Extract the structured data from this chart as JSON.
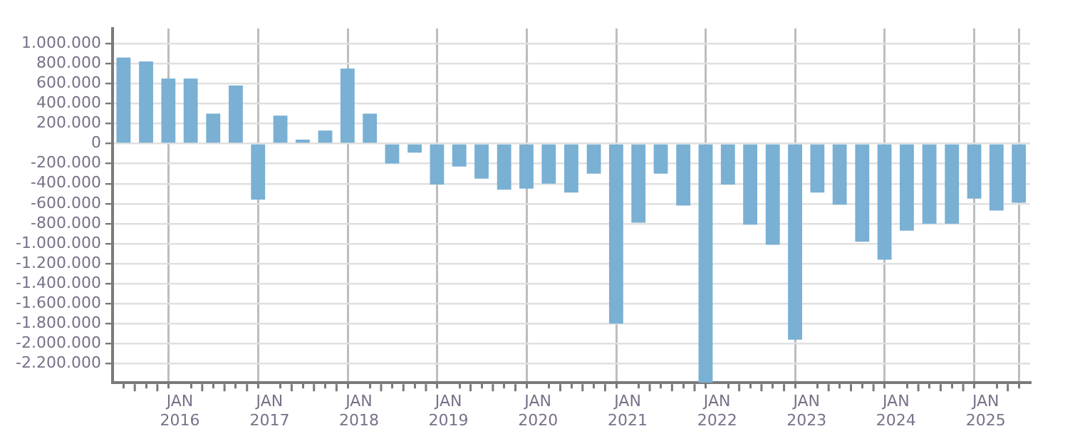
{
  "chart_data": {
    "type": "bar",
    "color": "#79b0d4",
    "x": [
      "2015-05-16",
      "2015-08-16",
      "2015-11-15",
      "2016-02-14",
      "2016-05-16",
      "2016-08-16",
      "2016-11-15",
      "2017-02-14",
      "2017-05-16",
      "2017-08-16",
      "2017-11-15",
      "2018-02-14",
      "2018-05-16",
      "2018-08-16",
      "2018-11-15",
      "2019-02-14",
      "2019-05-16",
      "2019-08-16",
      "2019-11-15",
      "2020-02-14",
      "2020-05-16",
      "2020-08-16",
      "2020-11-15",
      "2021-02-14",
      "2021-05-16",
      "2021-08-16",
      "2021-11-15",
      "2022-02-14",
      "2022-05-16",
      "2022-08-16",
      "2022-11-15",
      "2023-02-14",
      "2023-05-16",
      "2023-08-16",
      "2023-11-15",
      "2024-02-14",
      "2024-05-16",
      "2024-08-16",
      "2024-11-15",
      "2025-02-14",
      "2025-05-16"
    ],
    "values": [
      860000,
      820000,
      650000,
      650000,
      300000,
      580000,
      -560000,
      280000,
      40000,
      130000,
      750000,
      300000,
      -200000,
      -90000,
      -410000,
      -230000,
      -350000,
      -460000,
      -450000,
      -400000,
      -490000,
      -300000,
      -1800000,
      -790000,
      -300000,
      -620000,
      -2390000,
      -410000,
      -810000,
      -1010000,
      -1960000,
      -490000,
      -610000,
      -980000,
      -1160000,
      -870000,
      -800000,
      -800000,
      -550000,
      -670000,
      -590000
    ],
    "xlim": [
      "2015-04-01",
      "2025-07-01"
    ],
    "xticks": [
      {
        "value": "2015-07-01",
        "label": null
      },
      {
        "value": "2015-10-01",
        "label": null
      },
      {
        "value": "2016-01-01",
        "label": "JAN\n2016"
      },
      {
        "value": "2016-04-01",
        "label": null
      },
      {
        "value": "2016-07-01",
        "label": null
      },
      {
        "value": "2016-10-01",
        "label": null
      },
      {
        "value": "2017-01-01",
        "label": "JAN\n2017"
      },
      {
        "value": "2017-04-01",
        "label": null
      },
      {
        "value": "2017-07-01",
        "label": null
      },
      {
        "value": "2017-10-01",
        "label": null
      },
      {
        "value": "2018-01-01",
        "label": "JAN\n2018"
      },
      {
        "value": "2018-04-01",
        "label": null
      },
      {
        "value": "2018-07-01",
        "label": null
      },
      {
        "value": "2018-10-01",
        "label": null
      },
      {
        "value": "2019-01-01",
        "label": "JAN\n2019"
      },
      {
        "value": "2019-04-01",
        "label": null
      },
      {
        "value": "2019-07-01",
        "label": null
      },
      {
        "value": "2019-10-01",
        "label": null
      },
      {
        "value": "2020-01-01",
        "label": "JAN\n2020"
      },
      {
        "value": "2020-04-01",
        "label": null
      },
      {
        "value": "2020-07-01",
        "label": null
      },
      {
        "value": "2020-10-01",
        "label": null
      },
      {
        "value": "2021-01-01",
        "label": "JAN\n2021"
      },
      {
        "value": "2021-04-01",
        "label": null
      },
      {
        "value": "2021-07-01",
        "label": null
      },
      {
        "value": "2021-10-01",
        "label": null
      },
      {
        "value": "2022-01-01",
        "label": "JAN\n2022"
      },
      {
        "value": "2022-04-01",
        "label": null
      },
      {
        "value": "2022-07-01",
        "label": null
      },
      {
        "value": "2022-10-01",
        "label": null
      },
      {
        "value": "2023-01-01",
        "label": "JAN\n2023"
      },
      {
        "value": "2023-04-01",
        "label": null
      },
      {
        "value": "2023-07-01",
        "label": null
      },
      {
        "value": "2023-10-01",
        "label": null
      },
      {
        "value": "2024-01-01",
        "label": "JAN\n2024"
      },
      {
        "value": "2024-04-01",
        "label": null
      },
      {
        "value": "2024-07-01",
        "label": null
      },
      {
        "value": "2024-10-01",
        "label": null
      },
      {
        "value": "2025-01-01",
        "label": "JAN\n2025"
      },
      {
        "value": "2025-04-01",
        "label": null
      }
    ],
    "ylim": [
      -2390000,
      1150000
    ],
    "yticks": [
      {
        "value": -2200000,
        "label": "-2.200.000"
      },
      {
        "value": -2000000,
        "label": "-2.000.000"
      },
      {
        "value": -1800000,
        "label": "-1.800.000"
      },
      {
        "value": -1600000,
        "label": "-1.600.000"
      },
      {
        "value": -1400000,
        "label": "-1.400.000"
      },
      {
        "value": -1200000,
        "label": "-1.200.000"
      },
      {
        "value": -1000000,
        "label": "-1.000.000"
      },
      {
        "value": -800000,
        "label": "-800.000"
      },
      {
        "value": -600000,
        "label": "-600.000"
      },
      {
        "value": -400000,
        "label": "-400.000"
      },
      {
        "value": -200000,
        "label": "-200.000"
      },
      {
        "value": 0,
        "label": "0"
      },
      {
        "value": 200000,
        "label": "200.000"
      },
      {
        "value": 400000,
        "label": "400.000"
      },
      {
        "value": 600000,
        "label": "600.000"
      },
      {
        "value": 800000,
        "label": "800.000"
      },
      {
        "value": 1000000,
        "label": "1.000.000"
      }
    ],
    "grid": true
  }
}
